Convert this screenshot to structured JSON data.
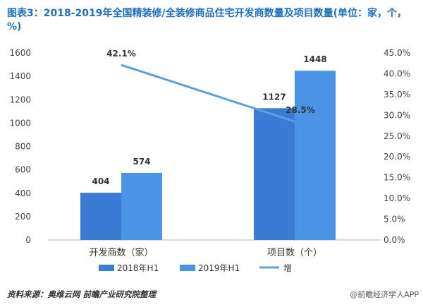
{
  "title": "图表3：2018-2019年全国精装修/全装修商品住宅开发商数量及项目数量(单位：家，个，%)",
  "source": "资料来源：奥维云网 前瞻产业研究院整理",
  "brand": "@前瞻经济学人APP",
  "chart_data": {
    "type": "bar",
    "categories": [
      "开发商数（家）",
      "项目数（个）"
    ],
    "series": [
      {
        "name": "2018年H1",
        "values": [
          404,
          1127
        ],
        "color": "#3a7bd5"
      },
      {
        "name": "2019年H1",
        "values": [
          574,
          1448
        ],
        "color": "#4a93e6"
      }
    ],
    "line_series": {
      "name": "增",
      "values": [
        42.1,
        28.5
      ],
      "labels": [
        "42.1%",
        "28.5%"
      ],
      "color": "#5aa0e0"
    },
    "ylim": [
      0,
      1600
    ],
    "yticks": [
      "0",
      "200",
      "400",
      "600",
      "800",
      "1000",
      "1200",
      "1400",
      "1600"
    ],
    "y2lim": [
      0,
      45
    ],
    "y2ticks": [
      "0.0%",
      "5.0%",
      "10.0%",
      "15.0%",
      "20.0%",
      "25.0%",
      "30.0%",
      "35.0%",
      "40.0%",
      "45.0%"
    ],
    "legend": "bottom"
  }
}
